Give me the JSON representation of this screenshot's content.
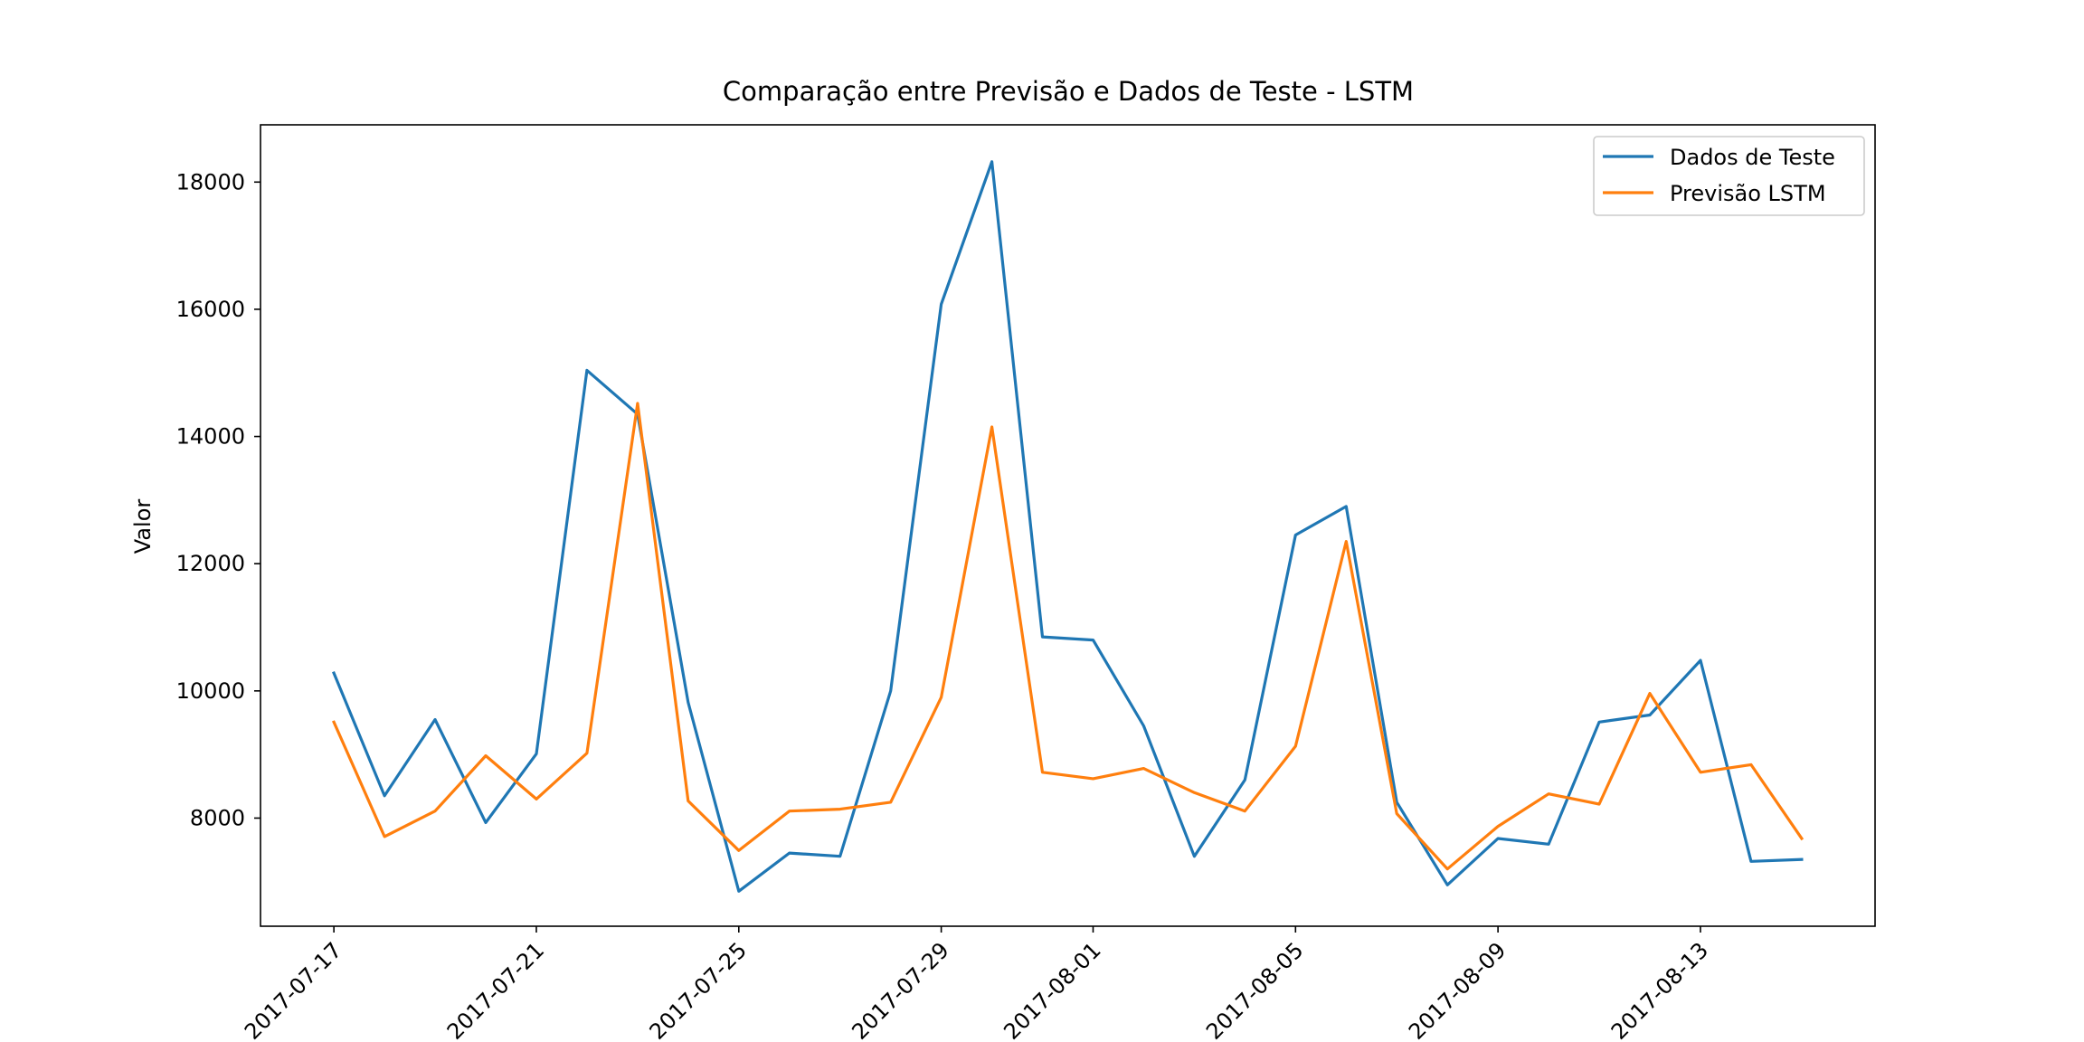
{
  "chart_data": {
    "type": "line",
    "title": "Comparação entre Previsão e Dados de Teste - LSTM",
    "xlabel": "",
    "ylabel": "Valor",
    "x": [
      "2017-07-17",
      "2017-07-18",
      "2017-07-19",
      "2017-07-20",
      "2017-07-21",
      "2017-07-22",
      "2017-07-23",
      "2017-07-24",
      "2017-07-25",
      "2017-07-26",
      "2017-07-27",
      "2017-07-28",
      "2017-07-29",
      "2017-07-30",
      "2017-07-31",
      "2017-08-01",
      "2017-08-02",
      "2017-08-03",
      "2017-08-04",
      "2017-08-05",
      "2017-08-06",
      "2017-08-07",
      "2017-08-08",
      "2017-08-09",
      "2017-08-10",
      "2017-08-11",
      "2017-08-12",
      "2017-08-13",
      "2017-08-14",
      "2017-08-15"
    ],
    "x_ticks": [
      "2017-07-17",
      "2017-07-21",
      "2017-07-25",
      "2017-07-29",
      "2017-08-01",
      "2017-08-05",
      "2017-08-09",
      "2017-08-13"
    ],
    "y_ticks": [
      8000,
      10000,
      12000,
      14000,
      16000,
      18000
    ],
    "xlim": [
      "2017-07-15.55",
      "2017-08-16.45"
    ],
    "ylim": [
      6300,
      18900
    ],
    "grid": false,
    "legend_position": "top-right",
    "series": [
      {
        "name": "Dados de Teste",
        "color": "#1f77b4",
        "values": [
          10280,
          8350,
          9550,
          7930,
          9010,
          15040,
          14350,
          9820,
          6850,
          7450,
          7400,
          10000,
          16080,
          18320,
          10850,
          10800,
          9450,
          7400,
          8600,
          12450,
          12900,
          8250,
          6950,
          7680,
          7590,
          9510,
          9620,
          10480,
          7320,
          7350
        ]
      },
      {
        "name": "Previsão LSTM",
        "color": "#ff7f0e",
        "values": [
          9510,
          7710,
          8110,
          8980,
          8300,
          9020,
          14520,
          8270,
          7490,
          8110,
          8140,
          8250,
          9900,
          14150,
          8720,
          8620,
          8780,
          8400,
          8110,
          9130,
          12350,
          8070,
          7200,
          7870,
          8380,
          8220,
          9960,
          8720,
          8840,
          7680
        ]
      }
    ]
  }
}
